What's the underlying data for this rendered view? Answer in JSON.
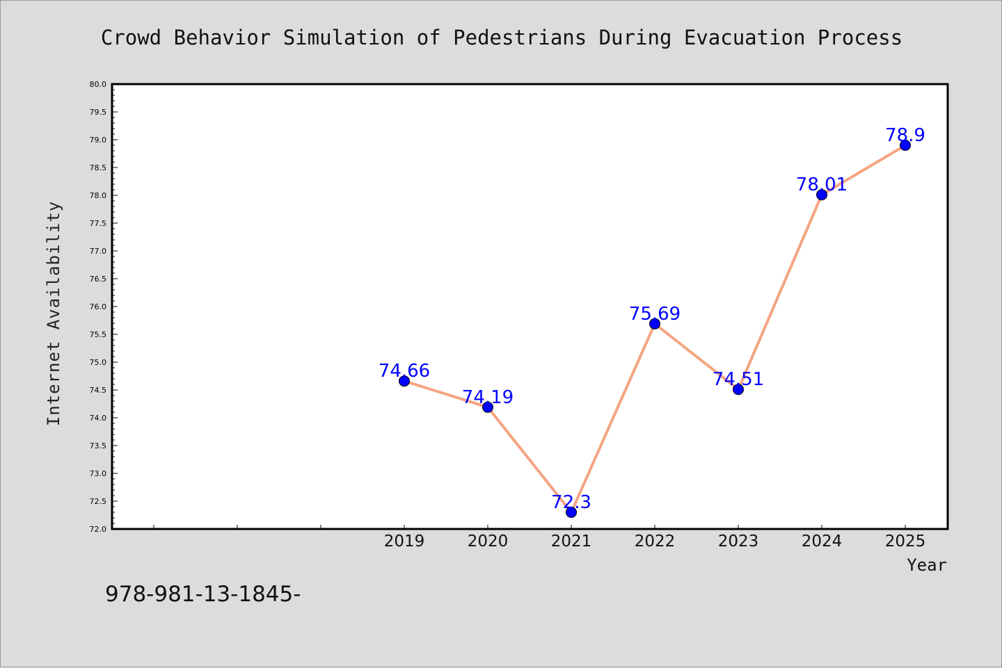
{
  "chart_data": {
    "type": "line",
    "title": "Crowd Behavior Simulation of Pedestrians During Evacuation Process",
    "xlabel": "Year",
    "ylabel": "Internet Availability",
    "categories": [
      "2019",
      "2020",
      "2021",
      "2022",
      "2023",
      "2024",
      "2025"
    ],
    "x_slots": 10,
    "series": [
      {
        "values": [
          74.66,
          74.19,
          72.3,
          75.69,
          74.51,
          78.01,
          78.9
        ]
      }
    ],
    "data_labels": [
      "74.66",
      "74.19",
      "72.3",
      "75.69",
      "74.51",
      "78.01",
      "78.9"
    ],
    "ylim": [
      72.0,
      80.0
    ],
    "yticks": [
      "72.0",
      "72.5",
      "73.0",
      "73.5",
      "74.0",
      "74.5",
      "75.0",
      "75.5",
      "76.0",
      "76.5",
      "77.0",
      "77.5",
      "78.0",
      "78.5",
      "79.0",
      "79.5",
      "80.0"
    ],
    "grid": false,
    "legend": "none",
    "line_color": "#f4a582",
    "marker_color": "#0000ff",
    "label_color": "#0000ff",
    "background": "#dcdcdc",
    "plot_background": "#ffffff"
  },
  "footer_text": "978-981-13-1845-"
}
